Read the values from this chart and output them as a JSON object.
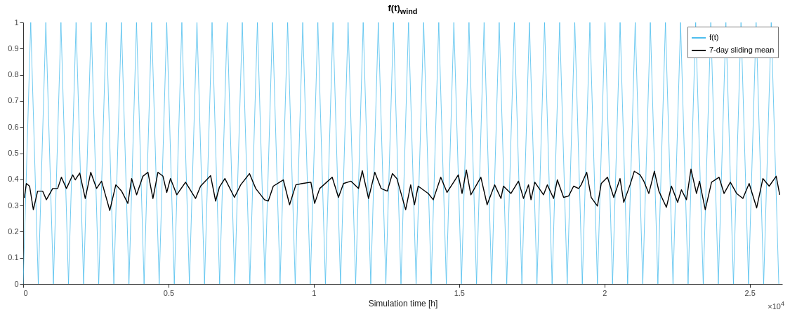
{
  "chart_data": {
    "type": "line",
    "title": "f(t)$_{wind}$",
    "xlabel": "Simulation time [h]",
    "annotations": [
      "×10$^{4}$"
    ],
    "xlim": [
      0,
      2.612
    ],
    "ylim": [
      0,
      1
    ],
    "xticks": [
      0,
      0.5,
      1,
      1.5,
      2,
      2.5
    ],
    "yticks": [
      0,
      0.1,
      0.2,
      0.3,
      0.4,
      0.5,
      0.6,
      0.7,
      0.8,
      0.9,
      1
    ],
    "legend": "top right",
    "series": [
      {
        "name": "f(t)",
        "color": "#4dbeee",
        "x": [
          0,
          0.026,
          0.052,
          0.078,
          0.104,
          0.13,
          0.156,
          0.182,
          0.208,
          0.234,
          0.26,
          0.286,
          0.312,
          0.338,
          0.364,
          0.39,
          0.416,
          0.442,
          0.468,
          0.494,
          0.52,
          0.546,
          0.572,
          0.598,
          0.624,
          0.65,
          0.676,
          0.702,
          0.728,
          0.754,
          0.78,
          0.806,
          0.832,
          0.858,
          0.884,
          0.91,
          0.936,
          0.962,
          0.988,
          1.014,
          1.04,
          1.066,
          1.092,
          1.118,
          1.144,
          1.17,
          1.196,
          1.222,
          1.248,
          1.274,
          1.3,
          1.326,
          1.352,
          1.378,
          1.404,
          1.43,
          1.456,
          1.482,
          1.508,
          1.534,
          1.56,
          1.586,
          1.612,
          1.638,
          1.664,
          1.69,
          1.716,
          1.742,
          1.768,
          1.794,
          1.82,
          1.846,
          1.872,
          1.898,
          1.924,
          1.95,
          1.976,
          2.002,
          2.028,
          2.054,
          2.08,
          2.106,
          2.132,
          2.158,
          2.184,
          2.21,
          2.236,
          2.262,
          2.288,
          2.314,
          2.34,
          2.366,
          2.392,
          2.418,
          2.444,
          2.47,
          2.496,
          2.522,
          2.548,
          2.574,
          2.6
        ],
        "values": [
          0,
          1,
          0,
          1,
          0,
          1,
          0,
          1,
          0,
          1,
          0,
          1,
          0,
          1,
          0,
          1,
          0,
          1,
          0,
          1,
          0,
          1,
          0,
          1,
          0,
          1,
          0,
          1,
          0,
          1,
          0,
          1,
          0,
          1,
          0,
          1,
          0,
          1,
          0,
          1,
          0,
          1,
          0,
          1,
          0,
          1,
          0,
          1,
          0,
          1,
          0,
          1,
          0,
          1,
          0,
          1,
          0,
          1,
          0,
          1,
          0,
          1,
          0,
          1,
          0,
          1,
          0,
          1,
          0,
          1,
          0,
          1,
          0,
          1,
          0,
          1,
          0,
          1,
          0,
          1,
          0,
          1,
          0,
          1,
          0,
          1,
          0,
          1,
          0,
          1,
          0,
          1,
          0,
          1,
          0,
          1,
          0,
          1,
          0,
          1,
          0
        ]
      },
      {
        "name": "7-day sliding mean",
        "color": "#000000",
        "x": [
          0.004,
          0.0109,
          0.0221,
          0.035,
          0.0497,
          0.0669,
          0.0799,
          0.1015,
          0.1187,
          0.1316,
          0.1489,
          0.1705,
          0.1791,
          0.1946,
          0.2136,
          0.2326,
          0.2524,
          0.2697,
          0.2981,
          0.3188,
          0.3387,
          0.3602,
          0.3732,
          0.3904,
          0.412,
          0.4293,
          0.4465,
          0.4638,
          0.481,
          0.494,
          0.5069,
          0.5285,
          0.5587,
          0.5932,
          0.6104,
          0.6449,
          0.6622,
          0.6751,
          0.6941,
          0.7269,
          0.7485,
          0.7787,
          0.8002,
          0.8304,
          0.8434,
          0.8606,
          0.8951,
          0.9167,
          0.9383,
          0.9598,
          0.99,
          1.0029,
          1.0202,
          1.0633,
          1.0849,
          1.1022,
          1.128,
          1.1539,
          1.1669,
          1.1884,
          1.21,
          1.2316,
          1.2531,
          1.2704,
          1.2859,
          1.3161,
          1.3334,
          1.3463,
          1.3592,
          1.3938,
          1.411,
          1.4369,
          1.4585,
          1.4973,
          1.5102,
          1.5249,
          1.5404,
          1.5749,
          1.5965,
          1.6223,
          1.6439,
          1.6526,
          1.6784,
          1.7043,
          1.7216,
          1.7388,
          1.7474,
          1.7604,
          1.7906,
          1.8035,
          1.8251,
          1.838,
          1.8596,
          1.8768,
          1.8941,
          1.9113,
          1.92,
          1.939,
          1.9545,
          1.976,
          1.989,
          2.0106,
          2.0321,
          2.0537,
          2.0666,
          2.0882,
          2.1028,
          2.1227,
          2.1356,
          2.1529,
          2.1719,
          2.1874,
          2.2133,
          2.2306,
          2.2521,
          2.265,
          2.2823,
          2.2978,
          2.3168,
          2.3271,
          2.347,
          2.3686,
          2.3944,
          2.4117,
          2.4333,
          2.4549,
          2.4764,
          2.498,
          2.5239,
          2.5454,
          2.567,
          2.5911,
          2.6032
        ],
        "values": [
          0.329,
          0.384,
          0.374,
          0.284,
          0.355,
          0.355,
          0.322,
          0.365,
          0.365,
          0.408,
          0.365,
          0.417,
          0.398,
          0.424,
          0.327,
          0.427,
          0.365,
          0.393,
          0.281,
          0.379,
          0.355,
          0.308,
          0.403,
          0.341,
          0.412,
          0.427,
          0.327,
          0.427,
          0.412,
          0.35,
          0.403,
          0.341,
          0.389,
          0.327,
          0.374,
          0.414,
          0.317,
          0.37,
          0.403,
          0.331,
          0.379,
          0.422,
          0.365,
          0.322,
          0.317,
          0.374,
          0.398,
          0.303,
          0.379,
          0.384,
          0.389,
          0.308,
          0.365,
          0.408,
          0.331,
          0.384,
          0.393,
          0.365,
          0.433,
          0.327,
          0.427,
          0.365,
          0.355,
          0.422,
          0.403,
          0.284,
          0.379,
          0.303,
          0.374,
          0.346,
          0.322,
          0.408,
          0.35,
          0.417,
          0.346,
          0.436,
          0.341,
          0.408,
          0.303,
          0.379,
          0.327,
          0.374,
          0.346,
          0.393,
          0.327,
          0.379,
          0.322,
          0.389,
          0.341,
          0.379,
          0.327,
          0.398,
          0.331,
          0.336,
          0.374,
          0.365,
          0.379,
          0.427,
          0.331,
          0.298,
          0.384,
          0.408,
          0.331,
          0.403,
          0.312,
          0.379,
          0.431,
          0.417,
          0.393,
          0.346,
          0.431,
          0.355,
          0.293,
          0.374,
          0.312,
          0.36,
          0.322,
          0.439,
          0.346,
          0.393,
          0.284,
          0.389,
          0.408,
          0.346,
          0.389,
          0.346,
          0.327,
          0.384,
          0.291,
          0.403,
          0.374,
          0.412,
          0.341
        ]
      }
    ]
  }
}
